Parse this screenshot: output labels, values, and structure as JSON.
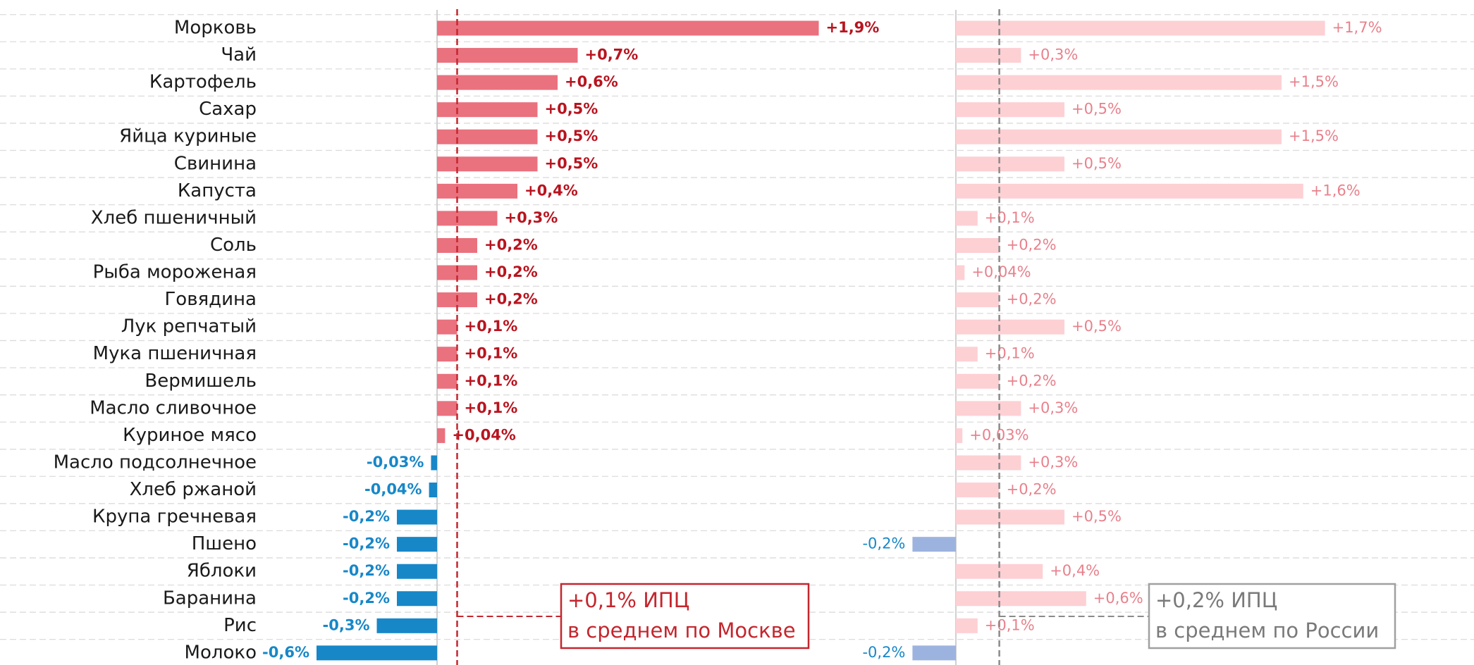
{
  "chart_data": {
    "type": "bar",
    "orientation": "horizontal",
    "categories": [
      "Морковь",
      "Чай",
      "Картофель",
      "Сахар",
      "Яйца куриные",
      "Свинина",
      "Капуста",
      "Хлеб пшеничный",
      "Соль",
      "Рыба мороженая",
      "Говядина",
      "Лук репчатый",
      "Мука пшеничная",
      "Вермишель",
      "Масло сливочное",
      "Куриное мясо",
      "Масло подсолнечное",
      "Хлеб ржаной",
      "Крупа гречневая",
      "Пшено",
      "Яблоки",
      "Баранина",
      "Рис",
      "Молоко"
    ],
    "grid": true,
    "series": [
      {
        "color": "#ea717e",
        "negative_color": "#1787c8",
        "label_color": "#b8141f",
        "negative_label_color": "#1787c8",
        "bold_labels": true,
        "values": [
          1.9,
          0.7,
          0.6,
          0.5,
          0.5,
          0.5,
          0.4,
          0.3,
          0.2,
          0.2,
          0.2,
          0.1,
          0.1,
          0.1,
          0.1,
          0.04,
          -0.03,
          -0.04,
          -0.2,
          -0.2,
          -0.2,
          -0.2,
          -0.3,
          -0.6
        ],
        "value_labels": [
          "+1,9%",
          "+0,7%",
          "+0,6%",
          "+0,5%",
          "+0,5%",
          "+0,5%",
          "+0,4%",
          "+0,3%",
          "+0,2%",
          "+0,2%",
          "+0,2%",
          "+0,1%",
          "+0,1%",
          "+0,1%",
          "+0,1%",
          "+0,04%",
          "-0,03%",
          "-0,04%",
          "-0,2%",
          "-0,2%",
          "-0,2%",
          "-0,2%",
          "-0,3%",
          "-0,6%"
        ],
        "reference": {
          "value": 0.1,
          "label": "+0,1% ИПЦ",
          "note": "в среднем по Москве",
          "color": "#c4262e"
        }
      },
      {
        "color": "#fdd0d4",
        "negative_color": "#9db3df",
        "label_color": "#e8818c",
        "negative_label_color": "#1787c8",
        "bold_labels": false,
        "values": [
          1.7,
          0.3,
          1.5,
          0.5,
          1.5,
          0.5,
          1.6,
          0.1,
          0.2,
          0.04,
          0.2,
          0.5,
          0.1,
          0.2,
          0.3,
          0.03,
          0.3,
          0.2,
          0.5,
          -0.2,
          0.4,
          0.6,
          0.1,
          -0.2
        ],
        "value_labels": [
          "+1,7%",
          "+0,3%",
          "+1,5%",
          "+0,5%",
          "+1,5%",
          "+0,5%",
          "+1,6%",
          "+0,1%",
          "+0,2%",
          "+0,04%",
          "+0,2%",
          "+0,5%",
          "+0,1%",
          "+0,2%",
          "+0,3%",
          "+0,03%",
          "+0,3%",
          "+0,2%",
          "+0,5%",
          "-0,2%",
          "+0,4%",
          "+0,6%",
          "+0,1%",
          "-0,2%"
        ],
        "reference": {
          "value": 0.2,
          "label": "+0,2% ИПЦ",
          "note": "в среднем по России",
          "color": "#8a8a8a"
        }
      }
    ]
  }
}
